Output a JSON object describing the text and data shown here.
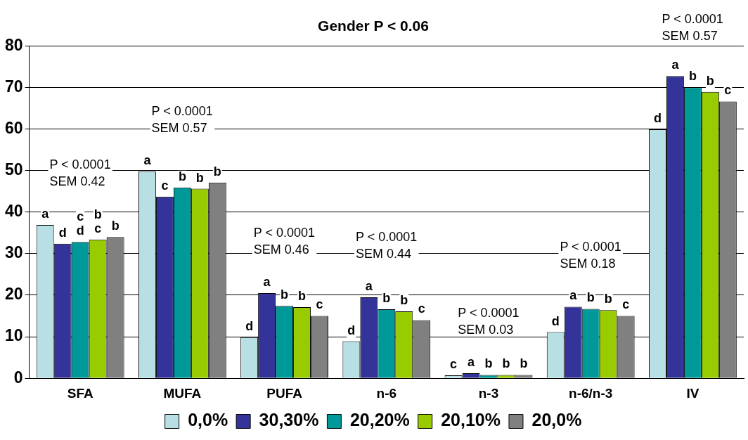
{
  "chart_data": {
    "type": "bar",
    "title": "Gender P < 0.06",
    "categories": [
      "SFA",
      "MUFA",
      "PUFA",
      "n-6",
      "n-3",
      "n-6/n-3",
      "IV"
    ],
    "series": [
      {
        "name": "0,0%",
        "color": "#b8e0e4",
        "values": [
          36.9,
          49.8,
          9.9,
          8.9,
          0.7,
          11.1,
          59.9
        ],
        "value_labels": [
          "a",
          "a",
          "d",
          "d",
          "c",
          "d",
          "d"
        ]
      },
      {
        "name": "30,30%",
        "color": "#333399",
        "values": [
          32.4,
          43.7,
          20.5,
          19.5,
          1.2,
          17.2,
          72.7
        ],
        "value_labels": [
          "d",
          "c",
          "a",
          "a",
          "a",
          "a",
          "a"
        ]
      },
      {
        "name": "20,20%",
        "color": "#009999",
        "values": [
          32.8,
          45.9,
          17.4,
          16.6,
          0.8,
          16.7,
          70.0
        ],
        "value_labels": [
          "c d",
          "b",
          "b",
          "b",
          "b",
          "b",
          "b"
        ]
      },
      {
        "name": "20,10%",
        "color": "#99cc00",
        "values": [
          33.4,
          45.6,
          17.1,
          16.1,
          0.8,
          16.4,
          68.9
        ],
        "value_labels": [
          "b c",
          "b",
          "b",
          "b",
          "b",
          "b",
          "b"
        ]
      },
      {
        "name": "20,0%",
        "color": "#808080",
        "values": [
          34.0,
          47.1,
          15.0,
          14.0,
          0.8,
          15.0,
          66.6
        ],
        "value_labels": [
          "b",
          "b",
          "c",
          "c",
          "b",
          "c",
          "c"
        ]
      }
    ],
    "ylim": [
      0,
      80
    ],
    "yticks": [
      0,
      10,
      20,
      30,
      40,
      50,
      60,
      70,
      80
    ],
    "grid": "y",
    "legend": "bottom",
    "annotations": [
      "P < 0.0001\nSEM 0.42",
      "P < 0.0001\nSEM 0.57",
      "P < 0.0001\nSEM 0.46",
      "P < 0.0001\nSEM 0.44",
      "P < 0.0001\nSEM 0.03",
      "P < 0.0001\nSEM 0.18",
      "P < 0.0001\nSEM 0.57"
    ]
  }
}
